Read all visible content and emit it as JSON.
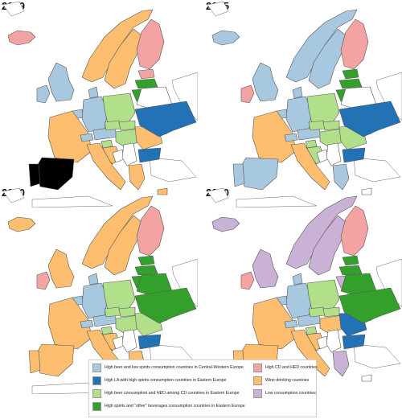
{
  "panels": [
    {
      "year": "2019",
      "fills": {
        "uk": "c",
        "ie": "c",
        "ic": "r",
        "no": "o",
        "se": "o",
        "fi": "r",
        "ee": "r",
        "lv": "g",
        "lt": "g",
        "fr": "o",
        "es": "b",
        "pt": "b",
        "it": "o",
        "be": "c",
        "de": "c",
        "dk": "c",
        "ch": "c",
        "at": "c",
        "pl": "l",
        "cz": "l",
        "sk": "l",
        "hu": "l",
        "si": "l",
        "hr": "o",
        "ba": "w",
        "rs": "w",
        "ro": "o",
        "bg": "n",
        "gr": "o",
        "by": "w",
        "ua": "n",
        "md": "w",
        "cy": "o"
      }
    },
    {
      "year": "2015",
      "fills": {
        "uk": "c",
        "ie": "r",
        "ic": "c",
        "no": "c",
        "se": "c",
        "fi": "r",
        "ee": "g",
        "lv": "g",
        "lt": "g",
        "fr": "o",
        "es": "c",
        "pt": "c",
        "it": "o",
        "be": "c",
        "de": "c",
        "dk": "c",
        "ch": "c",
        "at": "c",
        "pl": "l",
        "cz": "l",
        "sk": "l",
        "hu": "l",
        "si": "l",
        "hr": "l",
        "ba": "w",
        "rs": "w",
        "ro": "l",
        "bg": "n",
        "gr": "c",
        "by": "w",
        "ua": "n",
        "md": "w",
        "cy": "w"
      }
    },
    {
      "year": "2010",
      "fills": {
        "uk": "o",
        "ie": "r",
        "ic": "o",
        "no": "o",
        "se": "o",
        "fi": "r",
        "ee": "g",
        "lv": "g",
        "lt": "g",
        "fr": "o",
        "es": "o",
        "pt": "o",
        "it": "o",
        "be": "c",
        "de": "c",
        "dk": "c",
        "ch": "c",
        "at": "c",
        "pl": "l",
        "cz": "l",
        "sk": "l",
        "hu": "l",
        "si": "l",
        "hr": "o",
        "ba": "w",
        "rs": "w",
        "ro": "l",
        "bg": "n",
        "gr": "o",
        "by": "g",
        "ua": "g",
        "md": "w",
        "cy": "w"
      }
    },
    {
      "year": "2000",
      "fills": {
        "uk": "p",
        "ie": "r",
        "ic": "p",
        "no": "p",
        "se": "p",
        "fi": "r",
        "ee": "g",
        "lv": "g",
        "lt": "p",
        "fr": "o",
        "es": "o",
        "pt": "o",
        "it": "o",
        "be": "c",
        "de": "c",
        "dk": "c",
        "ch": "c",
        "at": "c",
        "pl": "l",
        "cz": "l",
        "sk": "l",
        "hu": "o",
        "si": "l",
        "hr": "o",
        "ba": "w",
        "rs": "w",
        "ro": "n",
        "bg": "n",
        "gr": "p",
        "by": "g",
        "ua": "g",
        "md": "w",
        "cy": "w"
      }
    }
  ],
  "colors": {
    "c": "#a8c8e0",
    "n": "#2272b5",
    "l": "#b2df8a",
    "g": "#33a02c",
    "r": "#f4a3a3",
    "o": "#fdbf6f",
    "p": "#cab2d6",
    "w": "#ffffff"
  },
  "legend": [
    {
      "key": "c",
      "label": "High beer and low spirits consumption countries in Central-Western Europe"
    },
    {
      "key": "n",
      "label": "High LA with high spirits consumption countries in Eastern Europe"
    },
    {
      "key": "l",
      "label": "High beer consumption and HED among CD countries in Eastern Europe"
    },
    {
      "key": "g",
      "label": "High spirits and \"other\" beverages consumption countries in Eastern Europe"
    },
    {
      "key": "r",
      "label": "High CD and HED countries"
    },
    {
      "key": "o",
      "label": "Wine-drinking countries"
    },
    {
      "key": "p",
      "label": "Low consumption countries"
    }
  ]
}
